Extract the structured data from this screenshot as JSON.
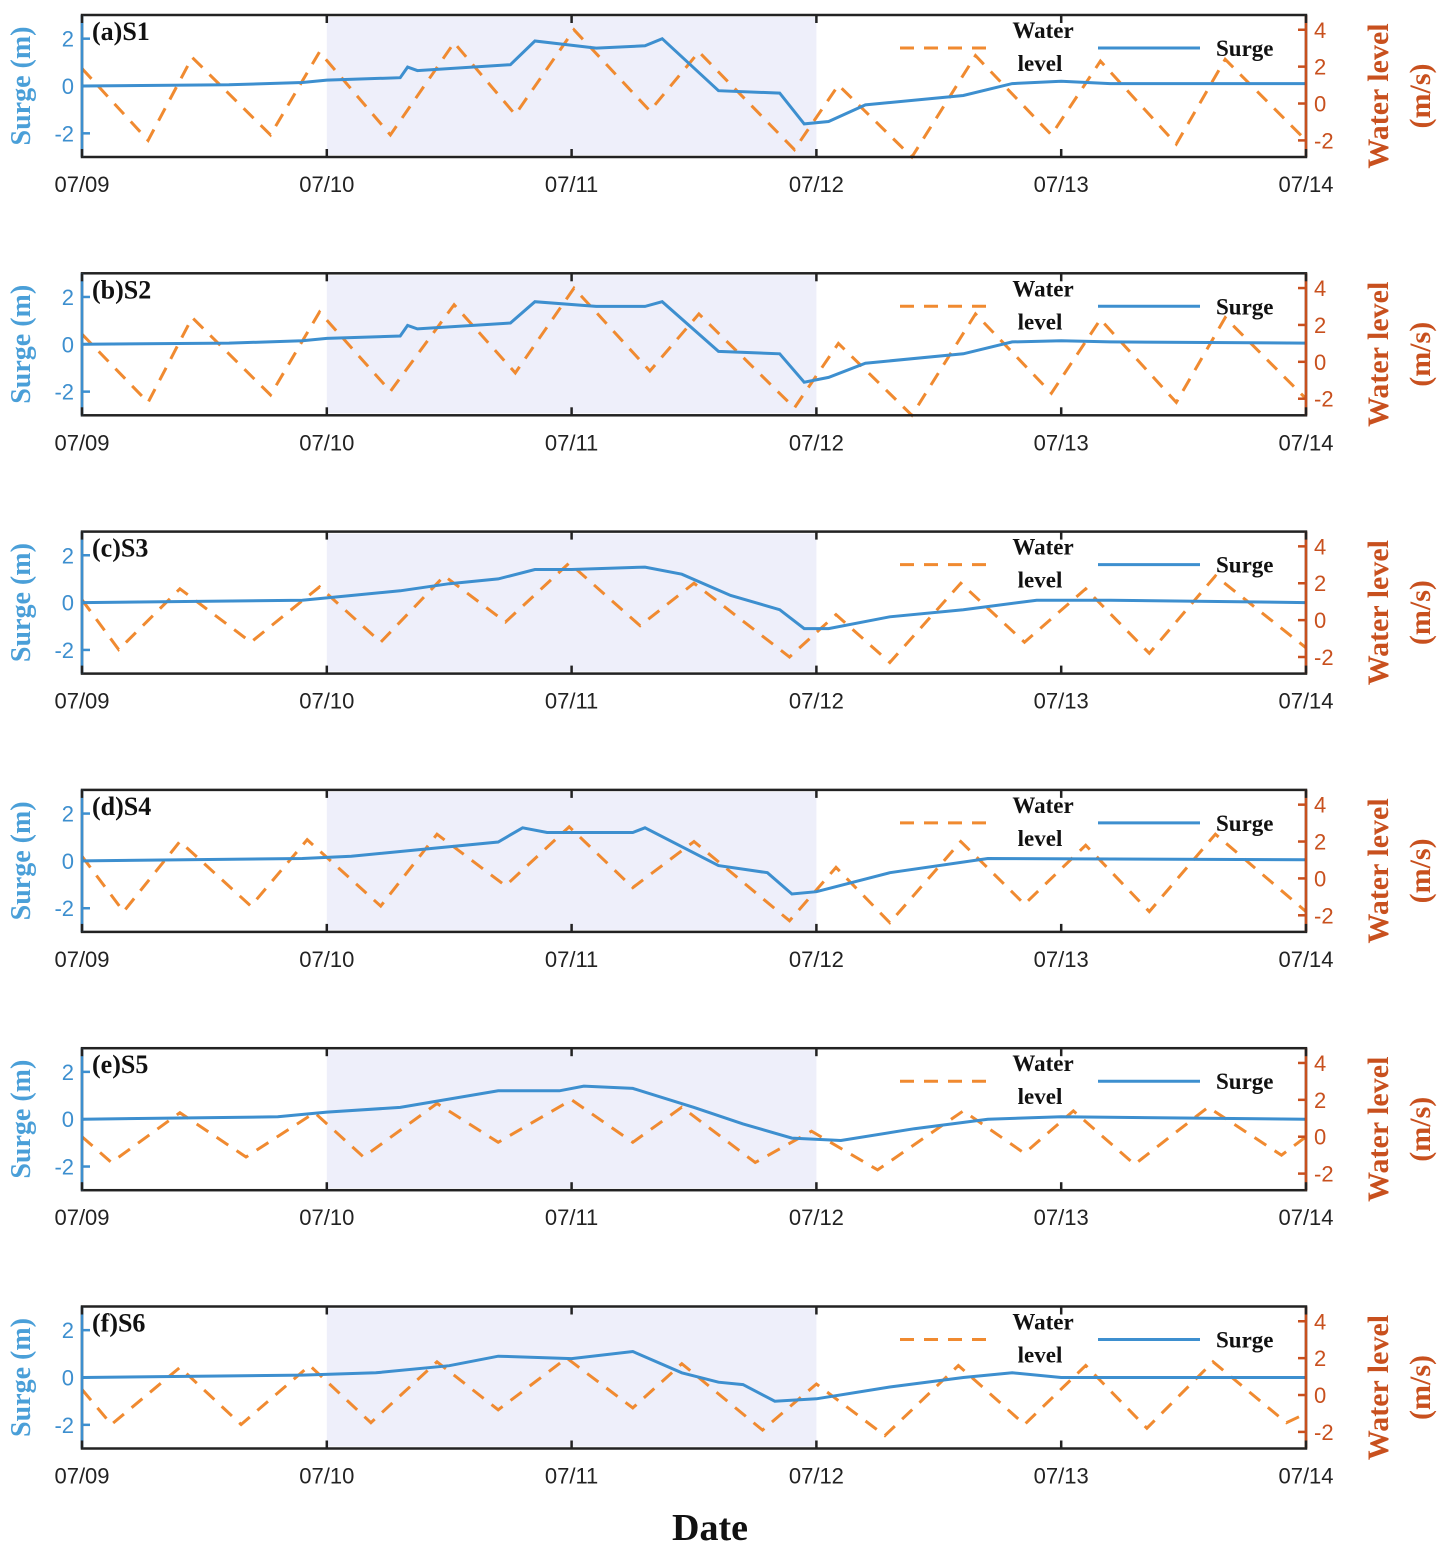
{
  "chart_data": {
    "type": "line",
    "xlabel": "Date",
    "x_tick_labels": [
      "07/09",
      "07/10",
      "07/11",
      "07/12",
      "07/13",
      "07/14"
    ],
    "x_unit": "days since 07/09",
    "xlim": [
      0,
      5
    ],
    "left_ylabel": "Surge (m)",
    "left_ylim": [
      -3,
      3
    ],
    "left_ticks": [
      "2",
      "0",
      "-2"
    ],
    "right_ylabel_line1": "Water level",
    "right_ylabel_line2": "(m/s)",
    "right_ylim": [
      -2.9,
      4.8
    ],
    "right_ticks": [
      "4",
      "2",
      "0",
      "-2"
    ],
    "shaded_range": [
      1,
      3
    ],
    "legend": {
      "water_level": "Water",
      "water_level_2": "level",
      "surge": "Surge",
      "placement": "top-right"
    },
    "colors": {
      "surge": "#3d8fcf",
      "water_level": "#f08a30",
      "right_axis": "#c8501e",
      "shade": "#eeeffa"
    },
    "panels": [
      {
        "title": "(a)S1",
        "surge": [
          [
            0,
            0
          ],
          [
            0.6,
            0.05
          ],
          [
            0.9,
            0.15
          ],
          [
            1.0,
            0.25
          ],
          [
            1.3,
            0.35
          ],
          [
            1.33,
            0.8
          ],
          [
            1.37,
            0.65
          ],
          [
            1.75,
            0.9
          ],
          [
            1.85,
            1.9
          ],
          [
            2.1,
            1.6
          ],
          [
            2.3,
            1.7
          ],
          [
            2.37,
            2.0
          ],
          [
            2.6,
            -0.2
          ],
          [
            2.85,
            -0.3
          ],
          [
            2.95,
            -1.6
          ],
          [
            3.05,
            -1.5
          ],
          [
            3.2,
            -0.8
          ],
          [
            3.6,
            -0.4
          ],
          [
            3.8,
            0.1
          ],
          [
            4.0,
            0.2
          ],
          [
            4.2,
            0.1
          ],
          [
            5,
            0.1
          ]
        ],
        "water_level": [
          [
            0,
            1.9
          ],
          [
            0.27,
            -2
          ],
          [
            0.45,
            2.5
          ],
          [
            0.77,
            -1.7
          ],
          [
            0.97,
            2.8
          ],
          [
            1.26,
            -1.7
          ],
          [
            1.52,
            3.3
          ],
          [
            1.77,
            -0.6
          ],
          [
            2.01,
            4
          ],
          [
            2.32,
            -0.4
          ],
          [
            2.52,
            2.8
          ],
          [
            2.91,
            -2.5
          ],
          [
            3.09,
            1
          ],
          [
            3.39,
            -2.9
          ],
          [
            3.65,
            2.6
          ],
          [
            3.96,
            -1.7
          ],
          [
            4.16,
            2.3
          ],
          [
            4.47,
            -2.2
          ],
          [
            4.67,
            2.4
          ],
          [
            5,
            -2
          ]
        ]
      },
      {
        "title": "(b)S2",
        "surge": [
          [
            0,
            0
          ],
          [
            0.6,
            0.05
          ],
          [
            0.9,
            0.15
          ],
          [
            1.0,
            0.25
          ],
          [
            1.3,
            0.35
          ],
          [
            1.33,
            0.8
          ],
          [
            1.37,
            0.65
          ],
          [
            1.75,
            0.9
          ],
          [
            1.85,
            1.8
          ],
          [
            2.1,
            1.6
          ],
          [
            2.3,
            1.6
          ],
          [
            2.37,
            1.8
          ],
          [
            2.6,
            -0.3
          ],
          [
            2.85,
            -0.4
          ],
          [
            2.95,
            -1.6
          ],
          [
            3.05,
            -1.4
          ],
          [
            3.2,
            -0.8
          ],
          [
            3.6,
            -0.4
          ],
          [
            3.8,
            0.1
          ],
          [
            4.0,
            0.15
          ],
          [
            4.2,
            0.1
          ],
          [
            5,
            0.05
          ]
        ],
        "water_level": [
          [
            0,
            1.5
          ],
          [
            0.27,
            -2.2
          ],
          [
            0.45,
            2.4
          ],
          [
            0.77,
            -1.8
          ],
          [
            0.97,
            2.7
          ],
          [
            1.26,
            -1.6
          ],
          [
            1.52,
            3.1
          ],
          [
            1.77,
            -0.6
          ],
          [
            2.01,
            4
          ],
          [
            2.32,
            -0.5
          ],
          [
            2.52,
            2.6
          ],
          [
            2.91,
            -2.5
          ],
          [
            3.09,
            1
          ],
          [
            3.39,
            -2.9
          ],
          [
            3.65,
            2.6
          ],
          [
            3.96,
            -1.7
          ],
          [
            4.16,
            2.3
          ],
          [
            4.47,
            -2.2
          ],
          [
            4.67,
            2.4
          ],
          [
            5,
            -2
          ]
        ]
      },
      {
        "title": "(c)S3",
        "surge": [
          [
            0,
            0
          ],
          [
            0.9,
            0.1
          ],
          [
            1.1,
            0.3
          ],
          [
            1.3,
            0.5
          ],
          [
            1.5,
            0.8
          ],
          [
            1.7,
            1.0
          ],
          [
            1.85,
            1.4
          ],
          [
            2.0,
            1.4
          ],
          [
            2.3,
            1.5
          ],
          [
            2.45,
            1.2
          ],
          [
            2.65,
            0.3
          ],
          [
            2.85,
            -0.3
          ],
          [
            2.95,
            -1.1
          ],
          [
            3.05,
            -1.1
          ],
          [
            3.3,
            -0.6
          ],
          [
            3.6,
            -0.3
          ],
          [
            3.9,
            0.1
          ],
          [
            4.2,
            0.1
          ],
          [
            5,
            0
          ]
        ],
        "water_level": [
          [
            0,
            1.1
          ],
          [
            0.15,
            -1.6
          ],
          [
            0.4,
            1.7
          ],
          [
            0.69,
            -1.2
          ],
          [
            0.97,
            1.8
          ],
          [
            1.22,
            -1.2
          ],
          [
            1.48,
            2.4
          ],
          [
            1.73,
            -0.1
          ],
          [
            1.99,
            3.1
          ],
          [
            2.28,
            -0.3
          ],
          [
            2.5,
            2.0
          ],
          [
            2.89,
            -2.0
          ],
          [
            3.08,
            0.3
          ],
          [
            3.3,
            -2.3
          ],
          [
            3.59,
            2.0
          ],
          [
            3.85,
            -1.2
          ],
          [
            4.1,
            1.7
          ],
          [
            4.36,
            -1.8
          ],
          [
            4.63,
            2.4
          ],
          [
            5,
            -1.5
          ]
        ]
      },
      {
        "title": "(d)S4",
        "surge": [
          [
            0,
            0
          ],
          [
            0.9,
            0.1
          ],
          [
            1.1,
            0.2
          ],
          [
            1.4,
            0.5
          ],
          [
            1.7,
            0.8
          ],
          [
            1.8,
            1.4
          ],
          [
            1.9,
            1.2
          ],
          [
            2.25,
            1.2
          ],
          [
            2.3,
            1.4
          ],
          [
            2.6,
            -0.2
          ],
          [
            2.8,
            -0.5
          ],
          [
            2.9,
            -1.4
          ],
          [
            3.0,
            -1.3
          ],
          [
            3.3,
            -0.5
          ],
          [
            3.7,
            0.1
          ],
          [
            5,
            0.05
          ]
        ],
        "water_level": [
          [
            0,
            1.2
          ],
          [
            0.17,
            -1.8
          ],
          [
            0.4,
            2.0
          ],
          [
            0.69,
            -1.5
          ],
          [
            0.92,
            2.1
          ],
          [
            1.22,
            -1.5
          ],
          [
            1.45,
            2.4
          ],
          [
            1.73,
            -0.4
          ],
          [
            1.99,
            2.8
          ],
          [
            2.25,
            -0.5
          ],
          [
            2.5,
            2.0
          ],
          [
            2.89,
            -2.3
          ],
          [
            3.08,
            0.6
          ],
          [
            3.3,
            -2.4
          ],
          [
            3.59,
            2.0
          ],
          [
            3.85,
            -1.4
          ],
          [
            4.1,
            1.8
          ],
          [
            4.36,
            -1.8
          ],
          [
            4.63,
            2.4
          ],
          [
            5,
            -1.8
          ]
        ]
      },
      {
        "title": "(e)S5",
        "surge": [
          [
            0,
            0
          ],
          [
            0.8,
            0.1
          ],
          [
            1.0,
            0.3
          ],
          [
            1.3,
            0.5
          ],
          [
            1.7,
            1.2
          ],
          [
            1.95,
            1.2
          ],
          [
            2.05,
            1.4
          ],
          [
            2.25,
            1.3
          ],
          [
            2.5,
            0.5
          ],
          [
            2.7,
            -0.2
          ],
          [
            2.9,
            -0.8
          ],
          [
            3.1,
            -0.9
          ],
          [
            3.4,
            -0.4
          ],
          [
            3.7,
            0
          ],
          [
            4.0,
            0.1
          ],
          [
            5,
            0
          ]
        ],
        "water_level": [
          [
            0,
            0
          ],
          [
            0.12,
            -1.4
          ],
          [
            0.4,
            1.3
          ],
          [
            0.67,
            -1.1
          ],
          [
            0.95,
            1.3
          ],
          [
            1.15,
            -1.1
          ],
          [
            1.45,
            1.8
          ],
          [
            1.7,
            -0.3
          ],
          [
            2.0,
            2.0
          ],
          [
            2.25,
            -0.3
          ],
          [
            2.45,
            1.6
          ],
          [
            2.75,
            -1.4
          ],
          [
            2.98,
            0.3
          ],
          [
            3.25,
            -1.8
          ],
          [
            3.6,
            1.4
          ],
          [
            3.85,
            -0.9
          ],
          [
            4.05,
            1.4
          ],
          [
            4.3,
            -1.5
          ],
          [
            4.6,
            1.6
          ],
          [
            4.9,
            -1.0
          ],
          [
            5,
            0
          ]
        ]
      },
      {
        "title": "(f)S6",
        "surge": [
          [
            0,
            0
          ],
          [
            0.9,
            0.1
          ],
          [
            1.2,
            0.2
          ],
          [
            1.5,
            0.5
          ],
          [
            1.7,
            0.9
          ],
          [
            2.0,
            0.8
          ],
          [
            2.25,
            1.1
          ],
          [
            2.45,
            0.2
          ],
          [
            2.6,
            -0.2
          ],
          [
            2.7,
            -0.3
          ],
          [
            2.83,
            -1.0
          ],
          [
            3.0,
            -0.9
          ],
          [
            3.3,
            -0.4
          ],
          [
            3.6,
            0
          ],
          [
            3.8,
            0.2
          ],
          [
            4.0,
            0
          ],
          [
            5,
            0
          ]
        ],
        "water_level": [
          [
            0,
            0.3
          ],
          [
            0.12,
            -1.6
          ],
          [
            0.4,
            1.5
          ],
          [
            0.65,
            -1.6
          ],
          [
            0.93,
            1.6
          ],
          [
            1.18,
            -1.5
          ],
          [
            1.45,
            1.8
          ],
          [
            1.7,
            -0.8
          ],
          [
            1.98,
            2.0
          ],
          [
            2.25,
            -0.7
          ],
          [
            2.45,
            1.7
          ],
          [
            2.78,
            -1.9
          ],
          [
            3.0,
            0.6
          ],
          [
            3.28,
            -2.2
          ],
          [
            3.58,
            1.6
          ],
          [
            3.85,
            -1.6
          ],
          [
            4.1,
            1.6
          ],
          [
            4.35,
            -1.8
          ],
          [
            4.62,
            1.8
          ],
          [
            4.92,
            -1.5
          ],
          [
            5,
            -1.0
          ]
        ]
      }
    ]
  }
}
